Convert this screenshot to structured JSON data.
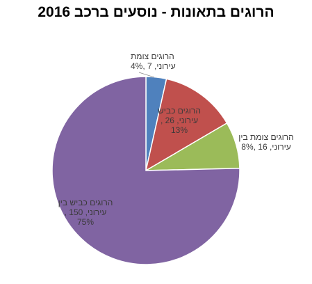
{
  "chart_data": {
    "type": "pie",
    "title": "הרוגים בתאונות - נוסעים ברכב 2016",
    "slices": [
      {
        "lines": [
          "הרוגים  צומת",
          "עירוני, 7 ,4%"
        ],
        "value": 7,
        "percent": "4%",
        "color": "#4F81BD"
      },
      {
        "lines": [
          "הרוגים כביש",
          "עירוני, 26 ,",
          "13%"
        ],
        "value": 26,
        "percent": "13%",
        "color": "#C0504D"
      },
      {
        "lines": [
          "הרוגים צומת בין",
          "עירוני, 16 ,8%"
        ],
        "value": 16,
        "percent": "8%",
        "color": "#9BBB59"
      },
      {
        "lines": [
          "הרוגים כביש בין",
          "עירוני, 150 ,",
          "75%"
        ],
        "value": 150,
        "percent": "75%",
        "color": "#8064A2"
      }
    ],
    "start": "12 o'clock",
    "direction": "clockwise",
    "legend": "none"
  }
}
